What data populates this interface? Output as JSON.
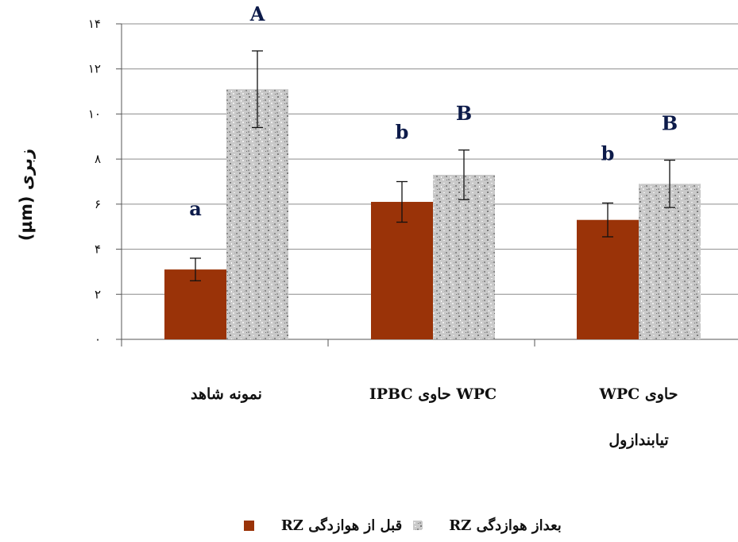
{
  "chart_data": {
    "type": "bar",
    "ylabel": "زبری (µm)",
    "ylim": [
      0,
      14
    ],
    "yticks": [
      "۰",
      "۲",
      "۴",
      "۶",
      "۸",
      "۱۰",
      "۱۲",
      "۱۴"
    ],
    "yticks_values": [
      0,
      2,
      4,
      6,
      8,
      10,
      12,
      14
    ],
    "categories": [
      [
        "نمونه شاهد"
      ],
      [
        "WPC حاوی IPBC"
      ],
      [
        "حاوی  WPC",
        "تیابندازول"
      ]
    ],
    "series": [
      {
        "name": "قبل از هوازدگی RZ",
        "color": "#9a3308",
        "pattern": "solid",
        "values": [
          3.1,
          6.1,
          5.3
        ],
        "errors": [
          0.5,
          0.9,
          0.75
        ],
        "group_labels": [
          "a",
          "b",
          "b"
        ]
      },
      {
        "name": "بعداز هوازدگی RZ",
        "color": "#b8b8b8",
        "pattern": "speckle",
        "values": [
          11.1,
          7.3,
          6.9
        ],
        "errors": [
          1.7,
          1.1,
          1.05
        ],
        "group_labels": [
          "A",
          "B",
          "B"
        ]
      }
    ],
    "grid": true,
    "legend_position": "bottom"
  }
}
